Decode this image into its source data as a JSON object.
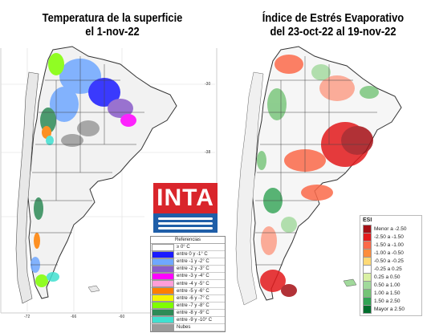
{
  "left_panel": {
    "title_line1": "Temperatura de la superficie",
    "title_line2": "el 1-nov-22",
    "lon_ticks": [
      "-72",
      "-66",
      "-60"
    ],
    "lat_ticks": [
      "-30",
      "-38"
    ],
    "logo_text": "INTA",
    "legend": {
      "heading": "Referencias",
      "items": [
        {
          "label": "≥ 0° C",
          "color": "#ffffff"
        },
        {
          "label": "entre 0 y -1° C",
          "color": "#1a1aff"
        },
        {
          "label": "entre -1 y -2° C",
          "color": "#6fa8ff"
        },
        {
          "label": "entre -2 y -3° C",
          "color": "#8a5cc9"
        },
        {
          "label": "entre -3 y -4° C",
          "color": "#ff00ff"
        },
        {
          "label": "entre -4 y -5° C",
          "color": "#ff9ed8"
        },
        {
          "label": "entre -5 y -6° C",
          "color": "#ff7f00"
        },
        {
          "label": "entre -6 y -7° C",
          "color": "#f5f500"
        },
        {
          "label": "entre -7 y -8° C",
          "color": "#7fff00"
        },
        {
          "label": "entre -8 y -9° C",
          "color": "#2e8b57"
        },
        {
          "label": "entre -9 y -10° C",
          "color": "#40e0d0"
        },
        {
          "label": "Nubes",
          "color": "#9a9a9a"
        }
      ]
    }
  },
  "right_panel": {
    "title_line1": "Índice de Estrés Evaporativo",
    "title_line2": "del 23-oct-22 al 19-nov-22",
    "legend": {
      "heading": "ESI",
      "items": [
        {
          "label": "Menor a -2.50",
          "color": "#a50f15"
        },
        {
          "label": "-2.50 a -1.50",
          "color": "#e31a1c"
        },
        {
          "label": "-1.50 a -1.00",
          "color": "#fb6a4a"
        },
        {
          "label": "-1.00 a -0.50",
          "color": "#fd8d3c"
        },
        {
          "label": "-0.50 a -0.25",
          "color": "#fed976"
        },
        {
          "label": "-0.25 a 0.25",
          "color": "#ffffff"
        },
        {
          "label": "0.25 a 0.50",
          "color": "#d9f0a3"
        },
        {
          "label": "0.50 a 1.00",
          "color": "#a1d99b"
        },
        {
          "label": "1.00 a 1.50",
          "color": "#74c476"
        },
        {
          "label": "1.50 a 2.50",
          "color": "#31a354"
        },
        {
          "label": "Mayor a 2.50",
          "color": "#006d2c"
        }
      ]
    }
  }
}
